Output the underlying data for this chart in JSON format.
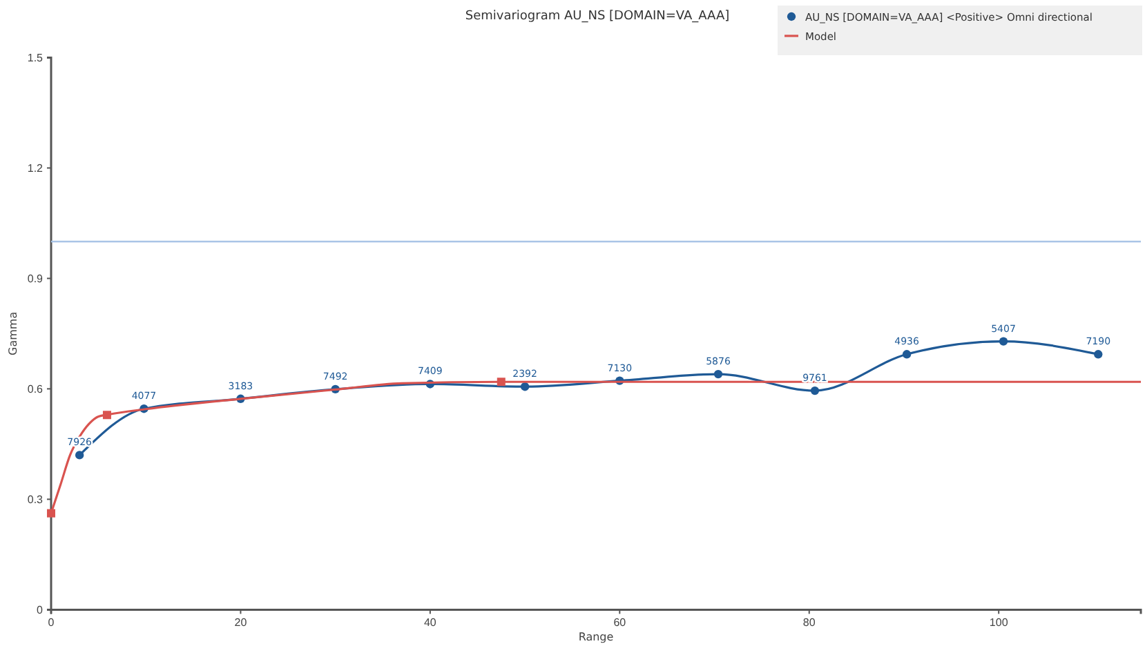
{
  "chart_data": {
    "type": "line",
    "title": "Semivariogram AU_NS [DOMAIN=VA_AAA]",
    "xlabel": "Range",
    "ylabel": "Gamma",
    "xlim": [
      0,
      115
    ],
    "xticks": [
      0,
      20,
      40,
      60,
      80,
      100
    ],
    "ylim": [
      0,
      1.5
    ],
    "yticks": [
      0,
      0.3,
      0.6,
      0.9,
      1.2,
      1.5
    ],
    "legend": "top right",
    "series": [
      {
        "name": "AU_NS [DOMAIN=VA_AAA] <Positive> Omni directional",
        "color": "#1f5a96",
        "marker": "circle",
        "x": [
          3,
          9.8,
          20,
          30,
          40,
          50,
          60,
          70.4,
          80.6,
          90.3,
          100.5,
          110.5
        ],
        "values": [
          0.42,
          0.546,
          0.573,
          0.599,
          0.613,
          0.606,
          0.622,
          0.64,
          0.595,
          0.694,
          0.729,
          0.694
        ]
      },
      {
        "name": "Model",
        "color": "#d9534f",
        "marker": "none",
        "x": [
          0,
          1,
          2,
          3,
          4,
          5,
          6,
          10,
          20,
          30,
          37,
          47.5,
          115
        ],
        "values": [
          0.262,
          0.34,
          0.42,
          0.47,
          0.505,
          0.525,
          0.53,
          0.545,
          0.573,
          0.598,
          0.615,
          0.619,
          0.619
        ]
      },
      {
        "type": "scatter",
        "color": "#d9534f",
        "marker": "square",
        "x": [
          0,
          5.9,
          47.5
        ],
        "values": [
          0.262,
          0.529,
          0.619
        ]
      }
    ],
    "annotations": [
      {
        "text": "7926",
        "x": 3,
        "y": 0.42
      },
      {
        "text": "4077",
        "x": 9.8,
        "y": 0.546
      },
      {
        "text": "3183",
        "x": 20,
        "y": 0.573
      },
      {
        "text": "7492",
        "x": 30,
        "y": 0.599
      },
      {
        "text": "7409",
        "x": 40,
        "y": 0.613
      },
      {
        "text": "2392",
        "x": 50,
        "y": 0.606
      },
      {
        "text": "7130",
        "x": 60,
        "y": 0.622
      },
      {
        "text": "5876",
        "x": 70.4,
        "y": 0.64
      },
      {
        "text": "9761",
        "x": 80.6,
        "y": 0.595
      },
      {
        "text": "4936",
        "x": 90.3,
        "y": 0.694
      },
      {
        "text": "5407",
        "x": 100.5,
        "y": 0.729
      },
      {
        "text": "7190",
        "x": 110.5,
        "y": 0.694
      }
    ],
    "ref_lines": [
      {
        "axis": "y",
        "value": 1.0,
        "color": "#a9c4e6"
      }
    ]
  }
}
